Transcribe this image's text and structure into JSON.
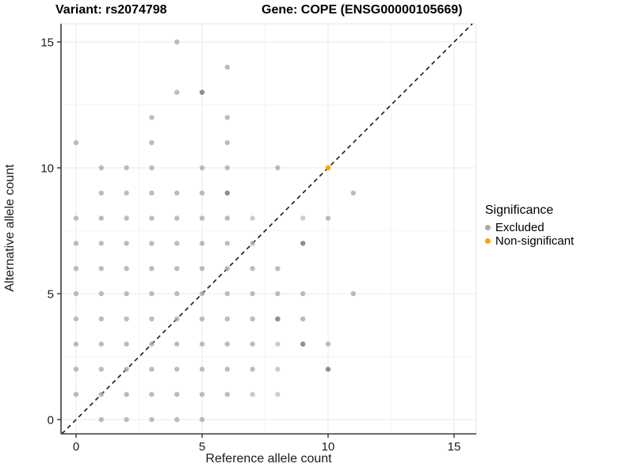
{
  "titles": {
    "variant": "Variant: rs2074798",
    "gene": "Gene: COPE (ENSG00000105669)"
  },
  "chart_data": {
    "type": "scatter",
    "xlabel": "Reference allele count",
    "ylabel": "Alternative allele count",
    "xlim": [
      -0.6,
      15.9
    ],
    "ylim": [
      -0.55,
      15.75
    ],
    "x_ticks": [
      0,
      5,
      10,
      15
    ],
    "x_tick_labels": [
      "0",
      "5",
      "10",
      "15"
    ],
    "y_ticks": [
      0,
      5,
      10,
      15
    ],
    "y_tick_labels": [
      "0",
      "5",
      "10",
      "15"
    ],
    "minor_gridlines": [
      2.5,
      7.5,
      12.5
    ],
    "grid": true,
    "identity_line": {
      "style": "dashed",
      "slope": 1,
      "intercept": 0,
      "color": "#1a1a1a"
    },
    "legend": {
      "title": "Significance",
      "position": "right"
    },
    "series": [
      {
        "name": "Excluded",
        "color": "#a9a9a9",
        "color_dark": "#8f8f8f",
        "color_light": "#c6c6c6",
        "points": [
          [
            0,
            1
          ],
          [
            0,
            2
          ],
          [
            0,
            3
          ],
          [
            0,
            4
          ],
          [
            0,
            5
          ],
          [
            0,
            6
          ],
          [
            0,
            7
          ],
          [
            0,
            8
          ],
          [
            0,
            11
          ],
          [
            1,
            0
          ],
          [
            1,
            1
          ],
          [
            1,
            2
          ],
          [
            1,
            3
          ],
          [
            1,
            4
          ],
          [
            1,
            5
          ],
          [
            1,
            6
          ],
          [
            1,
            7
          ],
          [
            1,
            8
          ],
          [
            1,
            9
          ],
          [
            1,
            10
          ],
          [
            2,
            0
          ],
          [
            2,
            1
          ],
          [
            2,
            2
          ],
          [
            2,
            3
          ],
          [
            2,
            4
          ],
          [
            2,
            5
          ],
          [
            2,
            6
          ],
          [
            2,
            7
          ],
          [
            2,
            8
          ],
          [
            2,
            9
          ],
          [
            2,
            10
          ],
          [
            3,
            0
          ],
          [
            3,
            1
          ],
          [
            3,
            2
          ],
          [
            3,
            3
          ],
          [
            3,
            4
          ],
          [
            3,
            5
          ],
          [
            3,
            6
          ],
          [
            3,
            7
          ],
          [
            3,
            8
          ],
          [
            3,
            9
          ],
          [
            3,
            10
          ],
          [
            3,
            11
          ],
          [
            3,
            12
          ],
          [
            4,
            0
          ],
          [
            4,
            1
          ],
          [
            4,
            2
          ],
          [
            4,
            3
          ],
          [
            4,
            4
          ],
          [
            4,
            5
          ],
          [
            4,
            6
          ],
          [
            4,
            7
          ],
          [
            4,
            8
          ],
          [
            4,
            9
          ],
          [
            4,
            13
          ],
          [
            4,
            15
          ],
          [
            5,
            0
          ],
          [
            5,
            1
          ],
          [
            5,
            2
          ],
          [
            5,
            3
          ],
          [
            5,
            4
          ],
          [
            5,
            5
          ],
          [
            5,
            6
          ],
          [
            5,
            7
          ],
          [
            5,
            8
          ],
          [
            5,
            9
          ],
          [
            5,
            10
          ],
          [
            6,
            1
          ],
          [
            6,
            2
          ],
          [
            6,
            3
          ],
          [
            6,
            4
          ],
          [
            6,
            5
          ],
          [
            6,
            6
          ],
          [
            6,
            7
          ],
          [
            6,
            8
          ],
          [
            6,
            10
          ],
          [
            6,
            11
          ],
          [
            6,
            12
          ],
          [
            6,
            14
          ],
          [
            7,
            2
          ],
          [
            7,
            3
          ],
          [
            7,
            4
          ],
          [
            7,
            5
          ],
          [
            7,
            6
          ],
          [
            7,
            7
          ],
          [
            8,
            5
          ],
          [
            8,
            6
          ],
          [
            8,
            10
          ],
          [
            9,
            4
          ],
          [
            9,
            5
          ],
          [
            10,
            3
          ],
          [
            10,
            8
          ],
          [
            11,
            5
          ],
          [
            11,
            9
          ]
        ],
        "points_dark": [
          [
            5,
            13
          ],
          [
            6,
            9
          ],
          [
            9,
            7
          ],
          [
            8,
            4
          ],
          [
            9,
            3
          ],
          [
            10,
            2
          ]
        ],
        "points_light": [
          [
            7,
            1
          ],
          [
            8,
            1
          ],
          [
            8,
            2
          ],
          [
            8,
            3
          ],
          [
            7,
            8
          ],
          [
            9,
            8
          ]
        ]
      },
      {
        "name": "Non-significant",
        "color": "#ffa500",
        "points": [
          [
            10,
            10
          ]
        ]
      }
    ]
  }
}
